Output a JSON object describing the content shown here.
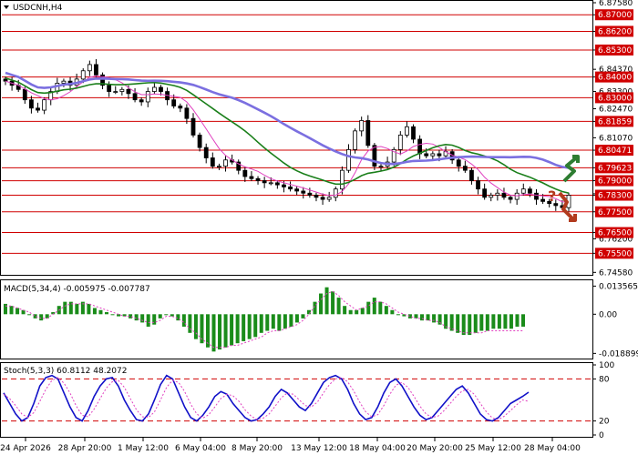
{
  "chart_data": [
    {
      "type": "candlestick",
      "symbol_title": "USDCNH,H4",
      "ylim": [
        6.7455,
        6.8758
      ],
      "price_axis_ticks": [
        "6.87580",
        "6.87000",
        "6.86200",
        "6.85300",
        "6.84370",
        "6.84000",
        "6.83300",
        "6.82470",
        "6.81859",
        "6.81070",
        "6.80471",
        "6.79623",
        "6.79000",
        "6.78370",
        "6.78300",
        "6.77500",
        "6.76500",
        "6.76200",
        "6.75500",
        "6.74580"
      ],
      "highlight_levels": [
        {
          "value": 6.87,
          "label": "6.87000"
        },
        {
          "value": 6.862,
          "label": "6.86200"
        },
        {
          "value": 6.853,
          "label": "6.85300"
        },
        {
          "value": 6.84,
          "label": "6.84000"
        },
        {
          "value": 6.83,
          "label": "6.83000"
        },
        {
          "value": 6.81859,
          "label": "6.81859"
        },
        {
          "value": 6.80471,
          "label": "6.80471"
        },
        {
          "value": 6.79623,
          "label": "6.79623"
        },
        {
          "value": 6.79,
          "label": "6.79000"
        },
        {
          "value": 6.783,
          "label": "6.78300"
        },
        {
          "value": 6.775,
          "label": "6.77500"
        },
        {
          "value": 6.765,
          "label": "6.76500"
        },
        {
          "value": 6.755,
          "label": "6.75500"
        }
      ],
      "level_color": "#d00000",
      "ma_colors": {
        "fast": "#e040c0",
        "mid": "#1a7f1a",
        "slow": "#7b6fe0"
      },
      "close_path": [
        6.838,
        6.836,
        6.834,
        6.829,
        6.825,
        6.824,
        6.829,
        6.833,
        6.837,
        6.838,
        6.836,
        6.839,
        6.843,
        6.846,
        6.841,
        6.836,
        6.833,
        6.833,
        6.834,
        6.832,
        6.829,
        6.828,
        6.833,
        6.835,
        6.833,
        6.829,
        6.826,
        6.825,
        6.82,
        6.812,
        6.806,
        6.801,
        6.797,
        6.797,
        6.8,
        6.799,
        6.795,
        6.792,
        6.791,
        6.79,
        6.789,
        6.789,
        6.788,
        6.787,
        6.786,
        6.785,
        6.784,
        6.783,
        6.782,
        6.781,
        6.782,
        6.786,
        6.795,
        6.805,
        6.814,
        6.819,
        6.807,
        6.797,
        6.797,
        6.799,
        6.805,
        6.812,
        6.816,
        6.81,
        6.803,
        6.802,
        6.803,
        6.802,
        6.804,
        6.8,
        6.797,
        6.795,
        6.79,
        6.786,
        6.782,
        6.783,
        6.784,
        6.782,
        6.781,
        6.784,
        6.786,
        6.784,
        6.781,
        6.78,
        6.779,
        6.778,
        6.777,
        6.783
      ],
      "annotation": {
        "symbol": "?",
        "up_arrow_color": "#2e7d32",
        "down_arrow_color": "#b23b1e"
      }
    },
    {
      "type": "bar",
      "title": "MACD(5,34,4) -0.005975 -0.007787",
      "axis_ticks": [
        "0.013565",
        "0.00",
        "-0.018899"
      ],
      "ylim": [
        -0.0205,
        0.0155
      ],
      "bar_color": "#1a8c1a",
      "signal_color": "#e040c0",
      "values": [
        0.005,
        0.004,
        0.003,
        0.002,
        0.0,
        -0.002,
        -0.003,
        -0.002,
        0.001,
        0.004,
        0.006,
        0.006,
        0.005,
        0.006,
        0.005,
        0.003,
        0.002,
        0.001,
        0.0,
        -0.001,
        -0.001,
        -0.002,
        -0.003,
        -0.004,
        -0.006,
        -0.005,
        -0.002,
        0.0,
        -0.001,
        -0.003,
        -0.006,
        -0.009,
        -0.012,
        -0.014,
        -0.016,
        -0.018,
        -0.017,
        -0.016,
        -0.015,
        -0.014,
        -0.013,
        -0.012,
        -0.011,
        -0.009,
        -0.008,
        -0.007,
        -0.008,
        -0.007,
        -0.006,
        -0.004,
        -0.002,
        0.002,
        0.006,
        0.01,
        0.013,
        0.011,
        0.008,
        0.004,
        0.002,
        0.002,
        0.003,
        0.006,
        0.008,
        0.006,
        0.004,
        0.002,
        0.0,
        -0.001,
        -0.002,
        -0.002,
        -0.003,
        -0.003,
        -0.004,
        -0.005,
        -0.007,
        -0.008,
        -0.009,
        -0.01,
        -0.01,
        -0.009,
        -0.008,
        -0.008,
        -0.007,
        -0.007,
        -0.007,
        -0.007,
        -0.006,
        -0.006
      ],
      "signal": [
        0.004,
        0.004,
        0.003,
        0.002,
        0.001,
        -0.001,
        -0.002,
        -0.002,
        0.0,
        0.002,
        0.004,
        0.005,
        0.005,
        0.005,
        0.005,
        0.004,
        0.003,
        0.002,
        0.001,
        0.0,
        -0.001,
        -0.001,
        -0.002,
        -0.003,
        -0.004,
        -0.004,
        -0.003,
        -0.001,
        -0.001,
        -0.002,
        -0.004,
        -0.007,
        -0.009,
        -0.012,
        -0.014,
        -0.016,
        -0.016,
        -0.016,
        -0.015,
        -0.015,
        -0.014,
        -0.013,
        -0.012,
        -0.011,
        -0.009,
        -0.008,
        -0.008,
        -0.007,
        -0.006,
        -0.005,
        -0.003,
        0.0,
        0.004,
        0.007,
        0.01,
        0.011,
        0.009,
        0.006,
        0.004,
        0.002,
        0.003,
        0.004,
        0.006,
        0.006,
        0.005,
        0.003,
        0.001,
        0.0,
        -0.001,
        -0.002,
        -0.002,
        -0.003,
        -0.003,
        -0.004,
        -0.006,
        -0.007,
        -0.008,
        -0.009,
        -0.009,
        -0.009,
        -0.009,
        -0.008,
        -0.008,
        -0.008,
        -0.008,
        -0.008,
        -0.008,
        -0.008
      ]
    },
    {
      "type": "line",
      "title": "Stoch(5,3,3) 60.8112 48.2072",
      "axis_ticks": [
        "100",
        "80",
        "20",
        "0"
      ],
      "ylim": [
        0,
        100
      ],
      "levels": [
        80,
        20
      ],
      "series": [
        {
          "name": "",
          "color": "#1010c8",
          "values": [
            60,
            45,
            30,
            20,
            25,
            45,
            70,
            82,
            85,
            80,
            60,
            40,
            25,
            20,
            35,
            55,
            70,
            80,
            82,
            70,
            50,
            35,
            22,
            20,
            30,
            50,
            72,
            85,
            80,
            60,
            40,
            25,
            20,
            28,
            40,
            55,
            62,
            58,
            45,
            35,
            25,
            20,
            22,
            30,
            40,
            55,
            65,
            60,
            50,
            40,
            35,
            45,
            60,
            75,
            82,
            85,
            80,
            65,
            45,
            30,
            22,
            25,
            40,
            60,
            75,
            80,
            70,
            55,
            40,
            28,
            22,
            25,
            35,
            45,
            55,
            65,
            70,
            60,
            45,
            30,
            22,
            20,
            25,
            35,
            45,
            50,
            55,
            61
          ]
        },
        {
          "name": "",
          "color": "#e040c0",
          "values": [
            58,
            52,
            42,
            30,
            25,
            32,
            48,
            65,
            78,
            82,
            74,
            60,
            42,
            28,
            26,
            37,
            52,
            67,
            76,
            78,
            68,
            52,
            36,
            26,
            25,
            33,
            50,
            68,
            78,
            75,
            62,
            44,
            30,
            24,
            29,
            40,
            52,
            58,
            56,
            48,
            36,
            27,
            22,
            24,
            30,
            41,
            53,
            60,
            58,
            50,
            42,
            40,
            47,
            60,
            72,
            80,
            82,
            76,
            63,
            47,
            33,
            26,
            29,
            42,
            58,
            71,
            75,
            68,
            55,
            41,
            30,
            25,
            27,
            35,
            45,
            55,
            63,
            65,
            58,
            45,
            33,
            24,
            22,
            27,
            35,
            43,
            50,
            48
          ]
        }
      ]
    }
  ],
  "time_axis": [
    "24 Apr 2026",
    "28 Apr 20:00",
    "1 May 12:00",
    "6 May 04:00",
    "8 May 20:00",
    "13 May 12:00",
    "18 May 04:00",
    "20 May 20:00",
    "25 May 12:00",
    "28 May 04:00"
  ]
}
